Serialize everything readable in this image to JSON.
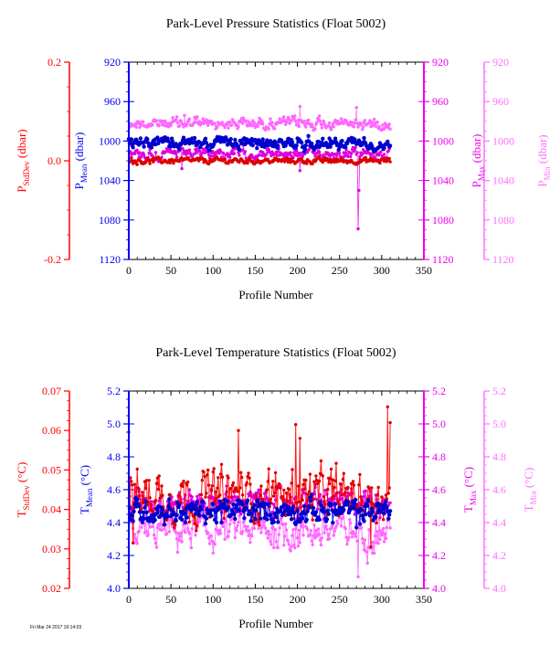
{
  "colors": {
    "stddev": "#ff0000",
    "mean": "#0000ee",
    "max": "#ee00ee",
    "min": "#ff70ff",
    "stddev_fill": "#dd0000",
    "mean_fill": "#0000cc",
    "max_fill": "#dd00dd",
    "min_fill": "#ff66ff"
  },
  "footer": "Fri Mar 24 2017 16:14:03",
  "chart_data": [
    {
      "type": "scatter",
      "title": "Park-Level Pressure Statistics (Float 5002)",
      "xlabel": "Profile Number",
      "xlim": [
        0,
        350
      ],
      "xticks": [
        "0",
        "50",
        "100",
        "150",
        "200",
        "250",
        "300",
        "350"
      ],
      "axes": {
        "stddev": {
          "label_main": "P",
          "label_sub": "StdDev",
          "label_unit": "(dbar)",
          "range": [
            -0.2,
            0.2
          ],
          "ticks": [
            "0.2",
            "0.0",
            "-0.2"
          ]
        },
        "mean": {
          "label_main": "P",
          "label_sub": "Mean",
          "label_unit": "(dbar)",
          "range": [
            920,
            1120
          ],
          "inverted": true,
          "ticks": [
            "920",
            "960",
            "1000",
            "1040",
            "1080",
            "1120"
          ]
        },
        "max": {
          "label_main": "P",
          "label_sub": "Max",
          "label_unit": "(dbar)",
          "range": [
            920,
            1120
          ],
          "inverted": true,
          "ticks": [
            "920",
            "960",
            "1000",
            "1040",
            "1080",
            "1120"
          ]
        },
        "min": {
          "label_main": "P",
          "label_sub": "Min",
          "label_unit": "(dbar)",
          "range": [
            920,
            1120
          ],
          "inverted": true,
          "ticks": [
            "920",
            "960",
            "1000",
            "1040",
            "1080",
            "1120"
          ]
        }
      },
      "series": {
        "stddev": {
          "start": 1,
          "end": 310,
          "base": 0.0,
          "jitter": 0.004,
          "spikes": []
        },
        "mean": {
          "start": 1,
          "end": 310,
          "base": 1002,
          "jitter": 4,
          "spikes": [
            [
              0,
              998
            ]
          ]
        },
        "max": {
          "start": 1,
          "end": 310,
          "base": 1013,
          "jitter": 4,
          "spikes": [
            [
              58,
              1004
            ],
            [
              63,
              1028
            ],
            [
              203,
              1030
            ],
            [
              272,
              1089
            ],
            [
              273,
              1050
            ]
          ]
        },
        "min": {
          "start": 0,
          "end": 310,
          "base": 982,
          "jitter": 4,
          "spikes": [
            [
              0,
              940
            ],
            [
              66,
              974
            ],
            [
              78,
              976
            ],
            [
              203,
              965
            ],
            [
              270,
              966
            ]
          ]
        }
      }
    },
    {
      "type": "line",
      "title": "Park-Level Temperature Statistics (Float 5002)",
      "xlabel": "Profile Number",
      "xlim": [
        0,
        350
      ],
      "xticks": [
        "0",
        "50",
        "100",
        "150",
        "200",
        "250",
        "300",
        "350"
      ],
      "axes": {
        "stddev": {
          "label_main": "T",
          "label_sub": "StdDev",
          "label_unit": "(°C)",
          "range": [
            0.02,
            0.07
          ],
          "ticks": [
            "0.07",
            "0.06",
            "0.05",
            "0.04",
            "0.03",
            "0.02"
          ]
        },
        "mean": {
          "label_main": "T",
          "label_sub": "Mean",
          "label_unit": "(°C)",
          "range": [
            4.0,
            5.2
          ],
          "ticks": [
            "5.2",
            "5.0",
            "4.8",
            "4.6",
            "4.4",
            "4.2",
            "4.0"
          ]
        },
        "max": {
          "label_main": "T",
          "label_sub": "Max",
          "label_unit": "(°C)",
          "range": [
            4.0,
            5.2
          ],
          "ticks": [
            "5.2",
            "5.0",
            "4.8",
            "4.6",
            "4.4",
            "4.2",
            "4.0"
          ]
        },
        "min": {
          "label_main": "T",
          "label_sub": "Min",
          "label_unit": "(°C)",
          "range": [
            4.0,
            5.2
          ],
          "ticks": [
            "5.2",
            "5.0",
            "4.8",
            "4.6",
            "4.4",
            "4.2",
            "4.0"
          ]
        }
      },
      "series": {
        "stddev": {
          "start": 1,
          "end": 310,
          "base": 0.0435,
          "jitter": 0.0045,
          "spikes": [
            [
              2,
              0.048
            ],
            [
              5,
              0.0315
            ],
            [
              130,
              0.06
            ],
            [
              198,
              0.0615
            ],
            [
              203,
              0.058
            ],
            [
              287,
              0.0305
            ],
            [
              307,
              0.066
            ],
            [
              310,
              0.062
            ]
          ]
        },
        "mean": {
          "start": 1,
          "end": 310,
          "base": 4.47,
          "jitter": 0.05,
          "spikes": [
            [
              110,
              4.4
            ],
            [
              270,
              4.37
            ]
          ]
        },
        "max": {
          "start": 1,
          "end": 310,
          "base": 4.53,
          "jitter": 0.05,
          "spikes": [
            [
              0,
              4.95
            ],
            [
              272,
              4.5
            ]
          ]
        },
        "min": {
          "start": 1,
          "end": 310,
          "base": 4.35,
          "jitter": 0.08,
          "spikes": [
            [
              272,
              4.07
            ]
          ]
        }
      }
    }
  ]
}
